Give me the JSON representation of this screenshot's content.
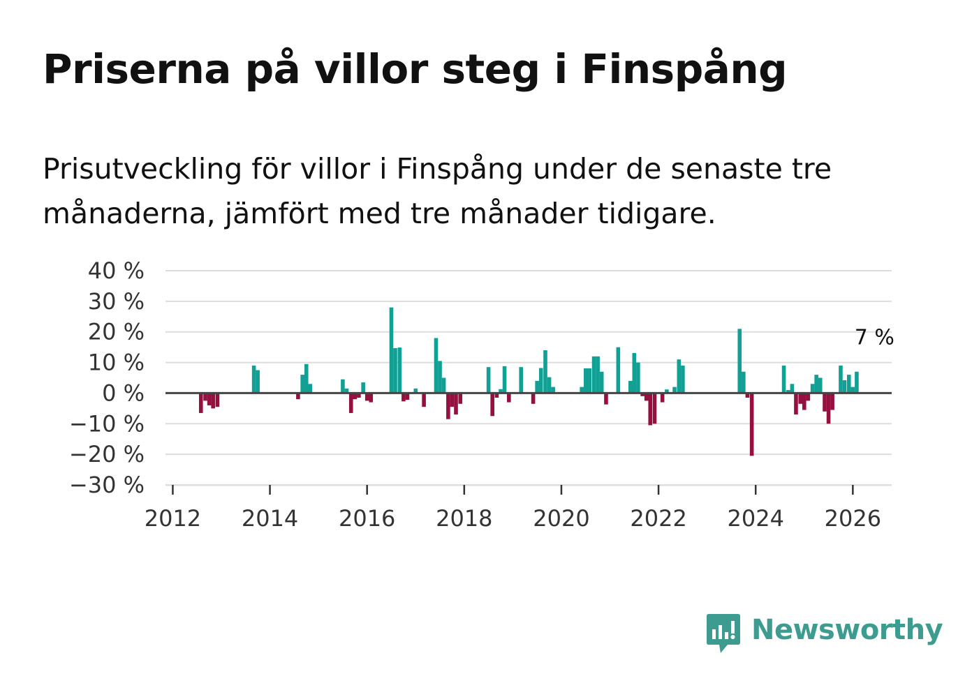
{
  "title": "Priserna på villor steg i Finspång",
  "subtitle": "Prisutveckling för villor i Finspång under de senaste tre månaderna, jämfört med tre månader tidigare.",
  "brand": {
    "name": "Newsworthy",
    "color": "#3d9b8f"
  },
  "colors": {
    "positive": "#12a095",
    "negative": "#95103f",
    "zero_line": "#444444",
    "grid": "#dddddd"
  },
  "chart_data": {
    "type": "bar",
    "title": "Priserna på villor steg i Finspång",
    "xlabel": "",
    "ylabel": "",
    "unit": "%",
    "ylim": [
      -30,
      40
    ],
    "yticks": [
      40,
      30,
      20,
      10,
      0,
      -10,
      -20,
      -30
    ],
    "ytick_labels": [
      "40 %",
      "30 %",
      "20 %",
      "10 %",
      "0 %",
      "−10 %",
      "−20 %",
      "−30 %"
    ],
    "xlim": [
      2011.85,
      2026.8
    ],
    "xticks": [
      2012,
      2014,
      2016,
      2018,
      2020,
      2022,
      2024,
      2026
    ],
    "xtick_labels": [
      "2012",
      "2014",
      "2016",
      "2018",
      "2020",
      "2022",
      "2024",
      "2026"
    ],
    "grid": true,
    "annotation": {
      "x": 2026.1,
      "y": 7,
      "text": "7 %"
    },
    "x": [
      2012.58,
      2012.67,
      2012.75,
      2012.83,
      2012.92,
      2013.67,
      2013.75,
      2014.58,
      2014.67,
      2014.75,
      2014.83,
      2015.5,
      2015.58,
      2015.67,
      2015.75,
      2015.83,
      2015.92,
      2016.0,
      2016.08,
      2016.5,
      2016.58,
      2016.67,
      2016.75,
      2016.83,
      2017.0,
      2017.17,
      2017.42,
      2017.5,
      2017.58,
      2017.67,
      2017.75,
      2017.83,
      2017.92,
      2018.5,
      2018.58,
      2018.67,
      2018.75,
      2018.83,
      2018.92,
      2019.17,
      2019.42,
      2019.5,
      2019.58,
      2019.67,
      2019.75,
      2019.83,
      2020.42,
      2020.5,
      2020.58,
      2020.67,
      2020.75,
      2020.83,
      2020.92,
      2021.17,
      2021.42,
      2021.5,
      2021.58,
      2021.67,
      2021.75,
      2021.83,
      2021.92,
      2022.08,
      2022.17,
      2022.33,
      2022.42,
      2022.5,
      2023.67,
      2023.75,
      2023.83,
      2023.92,
      2024.58,
      2024.67,
      2024.75,
      2024.83,
      2024.92,
      2025.0,
      2025.08,
      2025.17,
      2025.25,
      2025.33,
      2025.42,
      2025.5,
      2025.58,
      2025.75,
      2025.83,
      2025.92,
      2026.0,
      2026.08
    ],
    "values": [
      -6.5,
      -2.5,
      -4,
      -5,
      -4.5,
      9,
      7.5,
      -2,
      6,
      9.5,
      3,
      4.5,
      1.5,
      -6.5,
      -2,
      -1.5,
      3.5,
      -2.5,
      -3,
      28,
      14.7,
      14.9,
      -2.7,
      -2.2,
      1.5,
      -4.5,
      18,
      10.5,
      5,
      -8.5,
      -4.5,
      -7,
      -3.5,
      8.5,
      -7.5,
      -1.5,
      1.3,
      8.8,
      -3,
      8.5,
      -3.5,
      4,
      8.2,
      14,
      5.2,
      2,
      2,
      8.1,
      8.1,
      12,
      12,
      7,
      -3.7,
      15,
      4,
      13.1,
      10,
      -1,
      -2.5,
      -10.5,
      -10,
      -3,
      1.2,
      2,
      11,
      9,
      21,
      7,
      -1.5,
      -20.5,
      9,
      1,
      3,
      -7,
      -3.5,
      -5.5,
      -2.5,
      3,
      6,
      5,
      -6,
      -10,
      -5.5,
      9,
      4.2,
      6,
      2,
      7
    ]
  }
}
